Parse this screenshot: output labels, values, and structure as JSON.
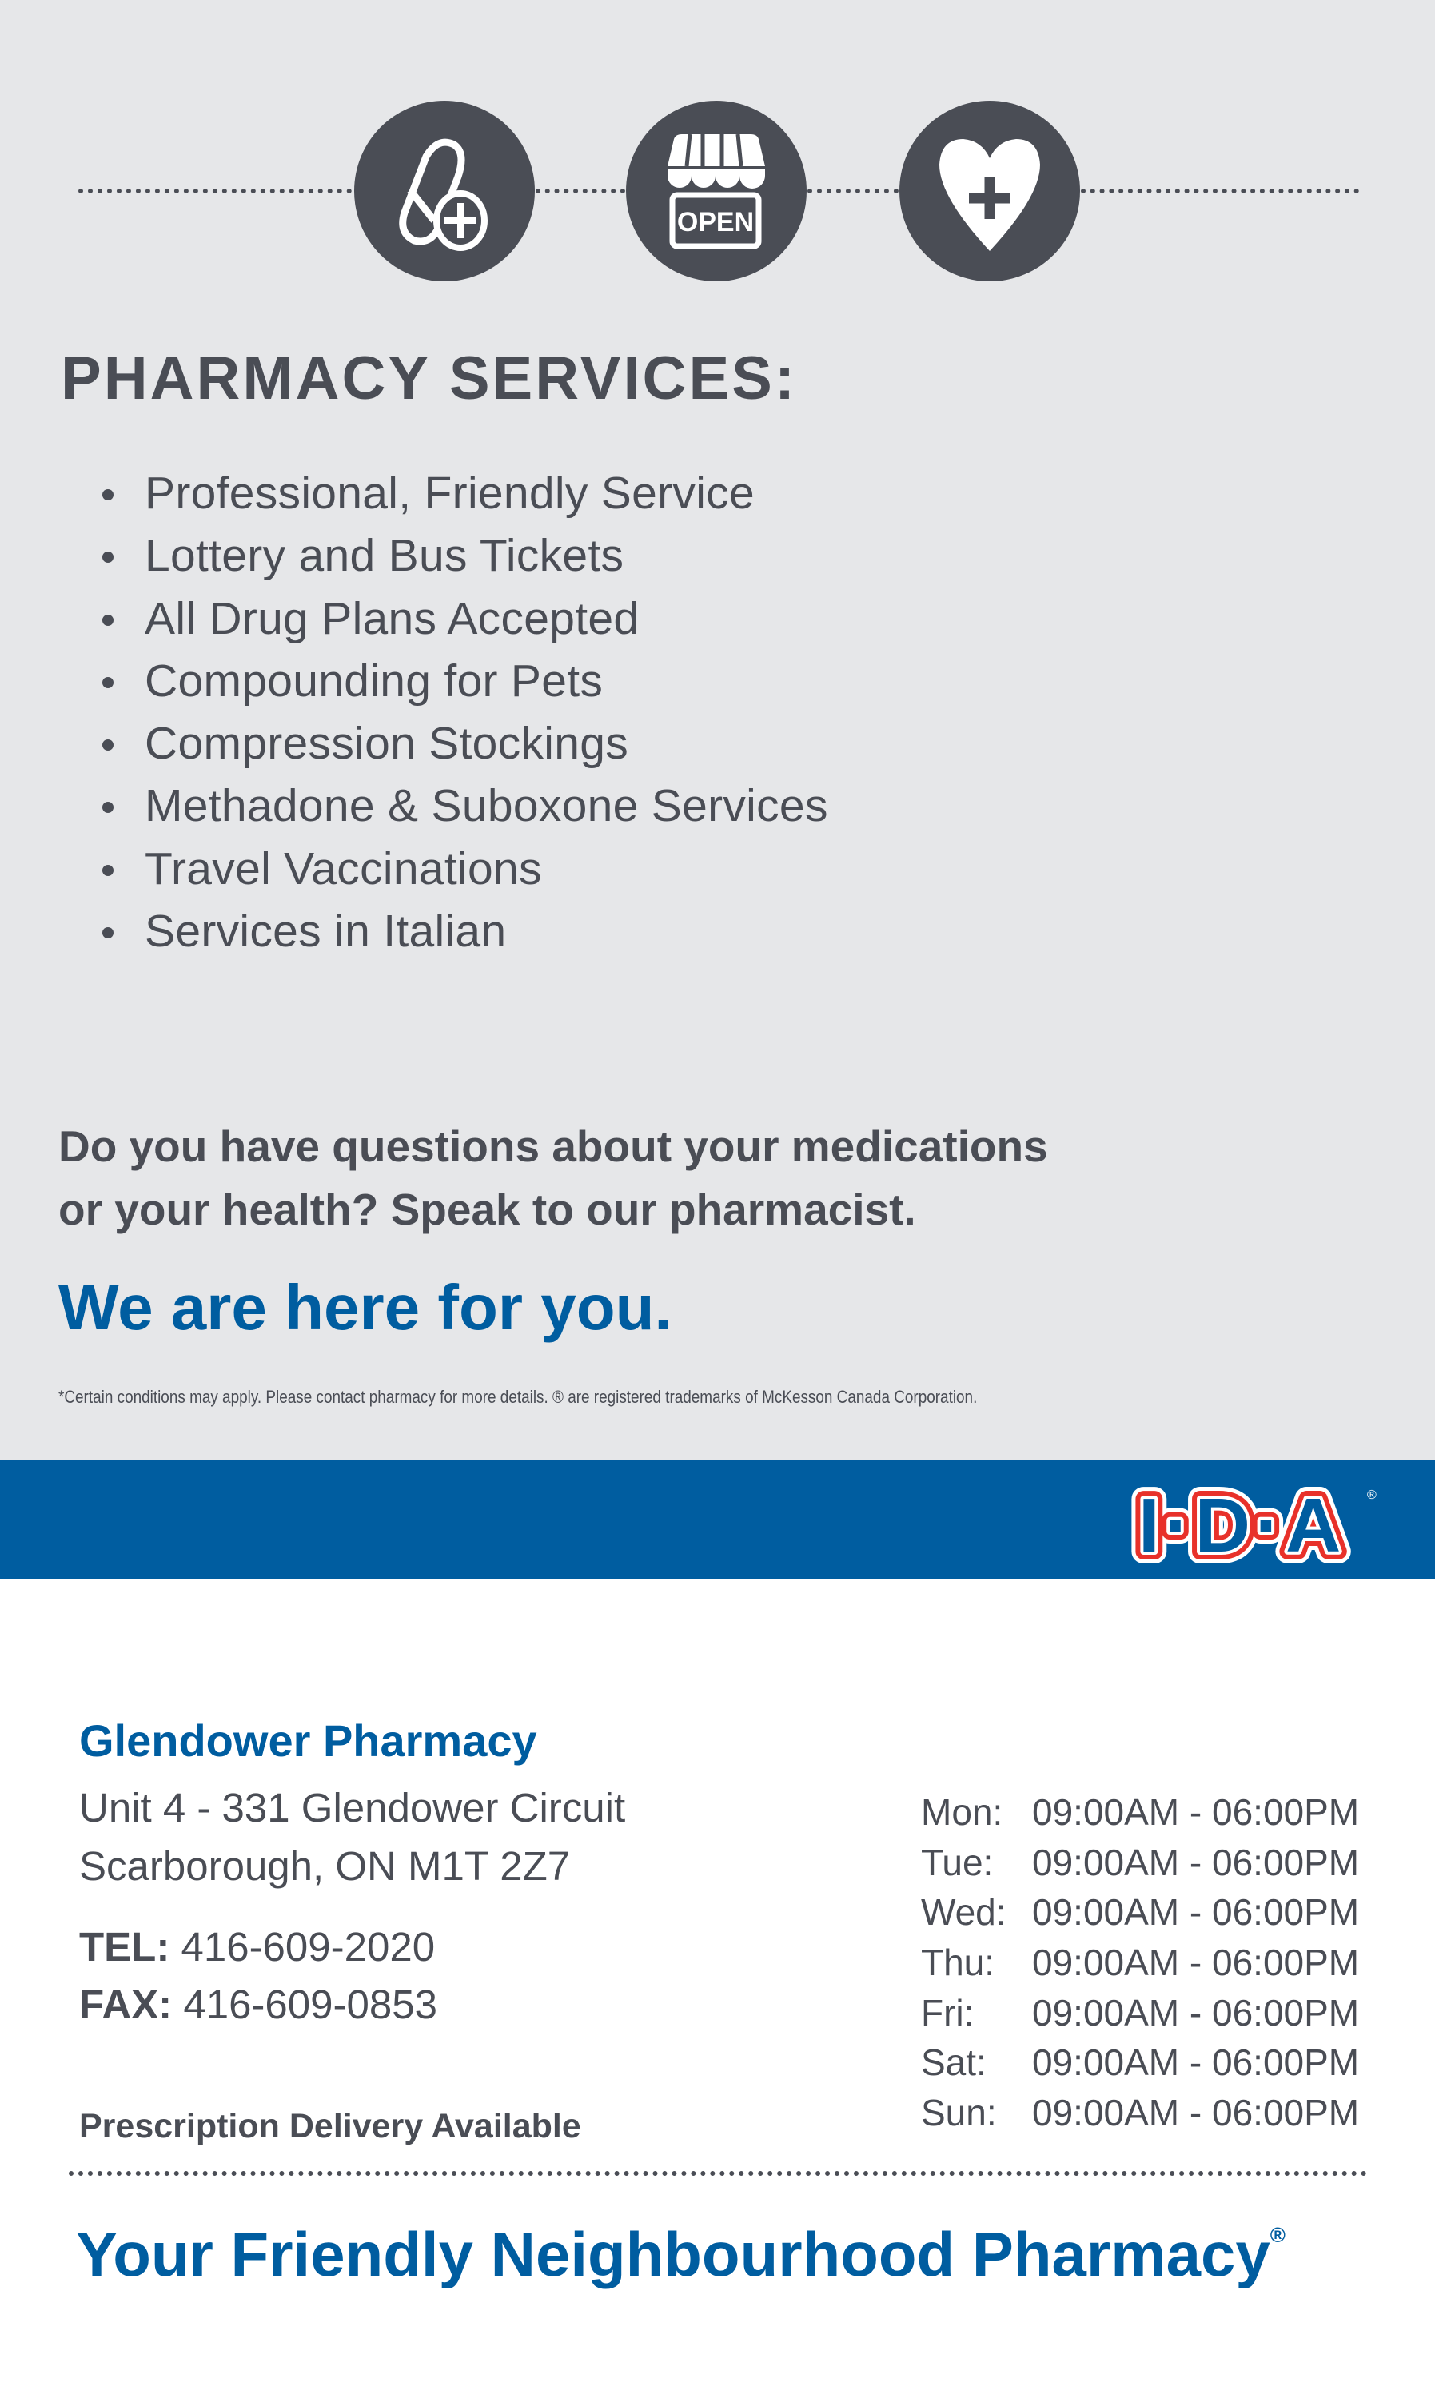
{
  "icons": [
    {
      "name": "pill-plus-icon"
    },
    {
      "name": "open-store-icon",
      "label": "OPEN"
    },
    {
      "name": "heart-plus-icon"
    }
  ],
  "services": {
    "title": "PHARMACY SERVICES:",
    "items": [
      "Professional, Friendly Service",
      "Lottery and Bus Tickets",
      "All Drug Plans Accepted",
      "Compounding for Pets",
      "Compression Stockings",
      "Methadone & Suboxone Services",
      "Travel Vaccinations",
      "Services in Italian"
    ]
  },
  "question": {
    "line1": "Do you have questions about your medications",
    "line2": "or your health? Speak to our pharmacist."
  },
  "tagline": "We are here for you.",
  "fine_print": "*Certain conditions may apply. Please contact pharmacy for more details. ® are registered trademarks of McKesson Canada Corporation.",
  "brand": {
    "logo_text": "I·D·A",
    "blue": "#005da0",
    "red": "#e8312a"
  },
  "pharmacy": {
    "name": "Glendower Pharmacy",
    "address_line1": "Unit 4 - 331 Glendower Circuit",
    "address_line2": "Scarborough, ON M1T 2Z7",
    "tel_label": "TEL:",
    "tel": "416-609-2020",
    "fax_label": "FAX:",
    "fax": "416-609-0853",
    "delivery": "Prescription Delivery Available"
  },
  "hours": [
    {
      "day": "Mon:",
      "time": "09:00AM - 06:00PM"
    },
    {
      "day": "Tue:",
      "time": "09:00AM - 06:00PM"
    },
    {
      "day": "Wed:",
      "time": "09:00AM - 06:00PM"
    },
    {
      "day": "Thu:",
      "time": "09:00AM - 06:00PM"
    },
    {
      "day": "Fri:",
      "time": "09:00AM - 06:00PM"
    },
    {
      "day": "Sat:",
      "time": "09:00AM - 06:00PM"
    },
    {
      "day": "Sun:",
      "time": "09:00AM - 06:00PM"
    }
  ],
  "slogan": {
    "text": "Your Friendly Neighbourhood Pharmacy",
    "mark": "®"
  }
}
